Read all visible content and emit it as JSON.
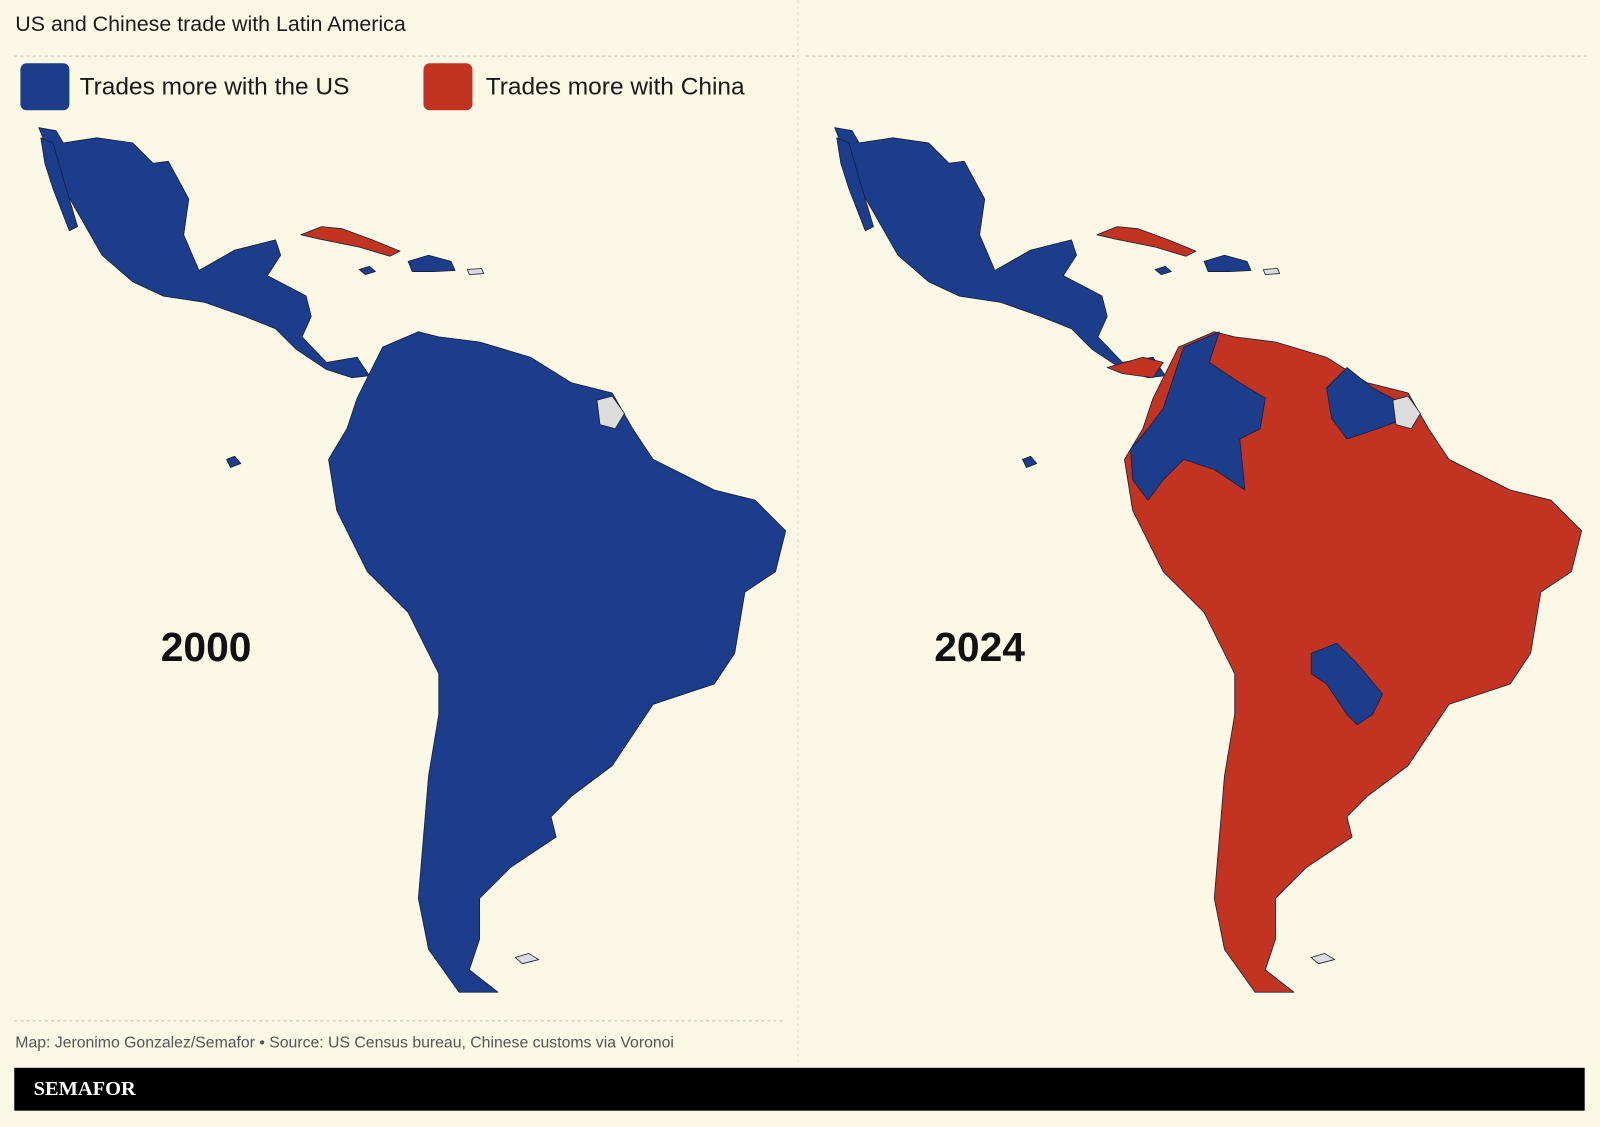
{
  "title": "US and Chinese trade with Latin America",
  "legend": [
    {
      "label": "Trades more with the US",
      "color": "#1c3c8c"
    },
    {
      "label": "Trades more with China",
      "color": "#c23322"
    }
  ],
  "maps": [
    {
      "year": "2000"
    },
    {
      "year": "2024"
    }
  ],
  "credit": "Map: Jeronimo Gonzalez/Semafor • Source: US Census bureau, Chinese customs via Voronoi",
  "brand": "SEMAFOR"
}
